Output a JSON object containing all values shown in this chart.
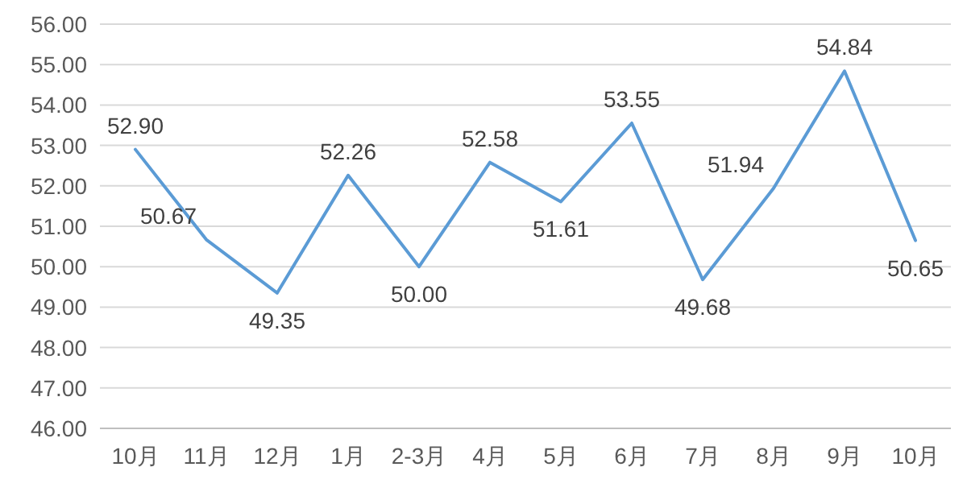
{
  "chart_data": {
    "type": "line",
    "categories": [
      "10月",
      "11月",
      "12月",
      "1月",
      "2-3月",
      "4月",
      "5月",
      "6月",
      "7月",
      "8月",
      "9月",
      "10月"
    ],
    "series": [
      {
        "color": "#5b9bd5",
        "values": [
          52.9,
          50.67,
          49.35,
          52.26,
          50.0,
          52.58,
          51.61,
          53.55,
          49.68,
          51.94,
          54.84,
          50.65
        ],
        "value_labels": [
          "52.90",
          "50.67",
          "49.35",
          "52.26",
          "50.00",
          "52.58",
          "51.61",
          "53.55",
          "49.68",
          "51.94",
          "54.84",
          "50.65"
        ]
      }
    ],
    "ylim": [
      46,
      56
    ],
    "yticks": [
      {
        "value": 46,
        "label": "46.00"
      },
      {
        "value": 47,
        "label": "47.00"
      },
      {
        "value": 48,
        "label": "48.00"
      },
      {
        "value": 49,
        "label": "49.00"
      },
      {
        "value": 50,
        "label": "50.00"
      },
      {
        "value": 51,
        "label": "51.00"
      },
      {
        "value": 52,
        "label": "52.00"
      },
      {
        "value": 53,
        "label": "53.00"
      },
      {
        "value": 54,
        "label": "54.00"
      },
      {
        "value": 55,
        "label": "55.00"
      },
      {
        "value": 56,
        "label": "56.00"
      }
    ],
    "grid": "y",
    "marker": "none",
    "line_style": "solid"
  }
}
